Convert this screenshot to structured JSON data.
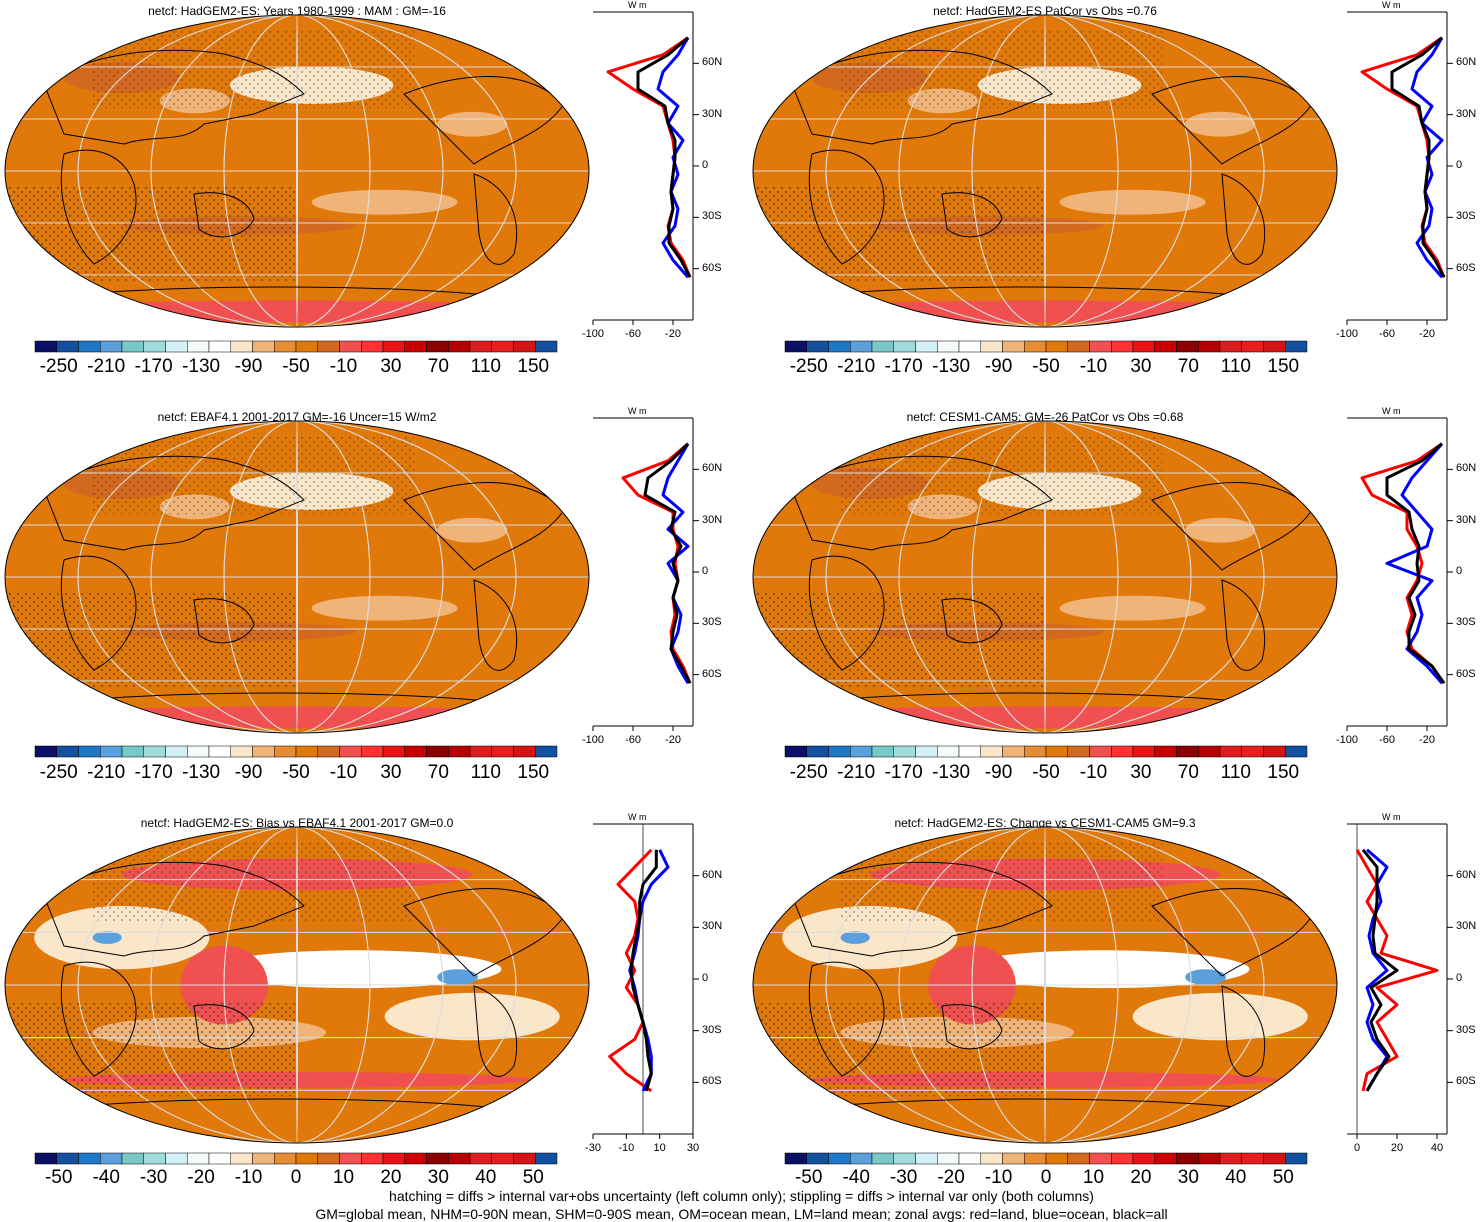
{
  "legend_colors": [
    "#0a1066",
    "#1450a0",
    "#1e78c8",
    "#5aa0dc",
    "#78c8c8",
    "#a0dcdc",
    "#d2f0f5",
    "#f5fafa",
    "#ffffff",
    "#fae6c8",
    "#f0b478",
    "#e68c32",
    "#e0780a",
    "#d2691e",
    "#f05050",
    "#ff3232",
    "#e61414",
    "#c80000",
    "#8c0000",
    "#b40000",
    "#dc1e1e",
    "#e61e1e",
    "#d21414",
    "#1450a0"
  ],
  "map_colors": {
    "base": "#e0780a",
    "light": "#fae6c8",
    "pale": "#f0b478",
    "dark": "#d2691e",
    "red": "#f05050",
    "white": "#ffffff",
    "blue": "#5aa0dc"
  },
  "zonal_colors": {
    "land": "#ff0000",
    "ocean": "#0000ff",
    "all": "#000000"
  },
  "footer": {
    "line1": "hatching = diffs > internal var+obs uncertainty (left column only); stippling = diffs > internal var only (both columns)",
    "line2": "GM=global mean, NHM=0-90N mean, SHM=0-90S mean, OM=ocean mean, LM=land mean; zonal avgs: red=land, blue=ocean, black=all"
  },
  "chart_data": [
    {
      "type": "heatmap",
      "title": "netcf: HadGEM2-ES: Years 1980-1999 : MAM : GM=-16",
      "colorbar_labels": [
        "-250",
        "-210",
        "-170",
        "-130",
        "-90",
        "-50",
        "-10",
        "30",
        "70",
        "110",
        "150"
      ],
      "zonal_unit": "W m",
      "zonal_xticks": [
        "-100",
        "-60",
        "-20"
      ],
      "zonal_xrange": [
        -100,
        0
      ],
      "zonal_yticks": [
        "60N",
        "30N",
        "0",
        "30S",
        "60S"
      ],
      "zonal_series": [
        {
          "lat": [
            75,
            65,
            55,
            45,
            35,
            25,
            15,
            5,
            -5,
            -15,
            -25,
            -35,
            -45,
            -55,
            -65
          ],
          "values": [
            -5,
            -30,
            -85,
            -60,
            -30,
            -25,
            -20,
            -18,
            -20,
            -22,
            -20,
            -25,
            -22,
            -10,
            -3
          ]
        },
        {
          "lat": [
            75,
            65,
            55,
            45,
            35,
            25,
            15,
            5,
            -5,
            -15,
            -25,
            -35,
            -45,
            -55,
            -65
          ],
          "values": [
            -5,
            -15,
            -30,
            -35,
            -15,
            -25,
            -10,
            -20,
            -15,
            -22,
            -15,
            -18,
            -30,
            -20,
            -5
          ]
        },
        {
          "lat": [
            75,
            65,
            55,
            45,
            35,
            25,
            15,
            5,
            -5,
            -15,
            -25,
            -35,
            -45,
            -55,
            -65
          ],
          "values": [
            -5,
            -25,
            -55,
            -55,
            -28,
            -25,
            -18,
            -18,
            -20,
            -22,
            -20,
            -24,
            -24,
            -12,
            -3
          ]
        }
      ]
    },
    {
      "type": "heatmap",
      "title": "netcf: HadGEM2-ES PatCor vs Obs =0.76",
      "colorbar_labels": [
        "-250",
        "-210",
        "-170",
        "-130",
        "-90",
        "-50",
        "-10",
        "30",
        "70",
        "110",
        "150"
      ],
      "zonal_unit": "W m",
      "zonal_xticks": [
        "-100",
        "-60",
        "-20"
      ],
      "zonal_xrange": [
        -100,
        0
      ],
      "zonal_yticks": [
        "60N",
        "30N",
        "0",
        "30S",
        "60S"
      ],
      "zonal_series": [
        {
          "lat": [
            75,
            65,
            55,
            45,
            35,
            25,
            15,
            5,
            -5,
            -15,
            -25,
            -35,
            -45,
            -55,
            -65
          ],
          "values": [
            -5,
            -30,
            -85,
            -60,
            -30,
            -25,
            -20,
            -18,
            -20,
            -22,
            -20,
            -25,
            -22,
            -10,
            -3
          ]
        },
        {
          "lat": [
            75,
            65,
            55,
            45,
            35,
            25,
            15,
            5,
            -5,
            -15,
            -25,
            -35,
            -45,
            -55,
            -65
          ],
          "values": [
            -5,
            -15,
            -30,
            -35,
            -15,
            -25,
            -5,
            -20,
            -15,
            -22,
            -15,
            -18,
            -30,
            -20,
            -5
          ]
        },
        {
          "lat": [
            75,
            65,
            55,
            45,
            35,
            25,
            15,
            5,
            -5,
            -15,
            -25,
            -35,
            -45,
            -55,
            -65
          ],
          "values": [
            -5,
            -25,
            -55,
            -55,
            -28,
            -25,
            -18,
            -18,
            -20,
            -22,
            -20,
            -24,
            -24,
            -12,
            -3
          ]
        }
      ]
    },
    {
      "type": "heatmap",
      "title": "netcf: EBAF4.1 2001-2017 GM=-16 Uncer=15 W/m2",
      "colorbar_labels": [
        "-250",
        "-210",
        "-170",
        "-130",
        "-90",
        "-50",
        "-10",
        "30",
        "70",
        "110",
        "150"
      ],
      "zonal_unit": "W m",
      "zonal_xticks": [
        "-100",
        "-60",
        "-20"
      ],
      "zonal_xrange": [
        -100,
        0
      ],
      "zonal_yticks": [
        "60N",
        "30N",
        "0",
        "30S",
        "60S"
      ],
      "zonal_series": [
        {
          "lat": [
            75,
            65,
            55,
            45,
            35,
            25,
            15,
            5,
            -5,
            -15,
            -25,
            -35,
            -45,
            -55,
            -65
          ],
          "values": [
            -5,
            -25,
            -70,
            -55,
            -20,
            -20,
            -15,
            -18,
            -15,
            -20,
            -18,
            -22,
            -20,
            -10,
            -3
          ]
        },
        {
          "lat": [
            75,
            65,
            55,
            45,
            35,
            25,
            15,
            5,
            -5,
            -15,
            -25,
            -35,
            -45,
            -55,
            -65
          ],
          "values": [
            -5,
            -15,
            -25,
            -30,
            -10,
            -25,
            -5,
            -25,
            -15,
            -20,
            -12,
            -15,
            -22,
            -15,
            -5
          ]
        },
        {
          "lat": [
            75,
            65,
            55,
            45,
            35,
            25,
            15,
            5,
            -5,
            -15,
            -25,
            -35,
            -45,
            -55,
            -65
          ],
          "values": [
            -5,
            -22,
            -45,
            -48,
            -18,
            -22,
            -12,
            -20,
            -15,
            -20,
            -16,
            -20,
            -22,
            -12,
            -3
          ]
        }
      ]
    },
    {
      "type": "heatmap",
      "title": "netcf: CESM1-CAM5: GM=-26 PatCor vs Obs =0.68",
      "colorbar_labels": [
        "-250",
        "-210",
        "-170",
        "-130",
        "-90",
        "-50",
        "-10",
        "30",
        "70",
        "110",
        "150"
      ],
      "zonal_unit": "W m",
      "zonal_xticks": [
        "-100",
        "-60",
        "-20"
      ],
      "zonal_xrange": [
        -100,
        0
      ],
      "zonal_yticks": [
        "60N",
        "30N",
        "0",
        "30S",
        "60S"
      ],
      "zonal_series": [
        {
          "lat": [
            75,
            65,
            55,
            45,
            35,
            25,
            15,
            5,
            -5,
            -15,
            -25,
            -35,
            -45,
            -55,
            -65
          ],
          "values": [
            -5,
            -30,
            -85,
            -75,
            -40,
            -40,
            -30,
            -25,
            -30,
            -40,
            -35,
            -40,
            -35,
            -15,
            -3
          ]
        },
        {
          "lat": [
            75,
            65,
            55,
            45,
            35,
            25,
            15,
            5,
            -5,
            -15,
            -25,
            -35,
            -45,
            -55,
            -65
          ],
          "values": [
            -5,
            -20,
            -35,
            -45,
            -30,
            -15,
            -20,
            -60,
            -15,
            -30,
            -25,
            -30,
            -40,
            -20,
            -5
          ]
        },
        {
          "lat": [
            75,
            65,
            55,
            45,
            35,
            25,
            15,
            5,
            -5,
            -15,
            -25,
            -35,
            -45,
            -55,
            -65
          ],
          "values": [
            -5,
            -25,
            -60,
            -60,
            -38,
            -35,
            -28,
            -30,
            -28,
            -38,
            -32,
            -38,
            -38,
            -15,
            -3
          ]
        }
      ]
    },
    {
      "type": "heatmap",
      "title": "netcf: HadGEM2-ES: Bias vs EBAF4.1 2001-2017 GM=0.0",
      "colorbar_labels": [
        "-50",
        "-40",
        "-30",
        "-20",
        "-10",
        "0",
        "10",
        "20",
        "30",
        "40",
        "50"
      ],
      "zonal_unit": "W m",
      "zonal_xticks": [
        "-30",
        "-10",
        "10",
        "30"
      ],
      "zonal_xrange": [
        -30,
        30
      ],
      "zonal_yticks": [
        "60N",
        "30N",
        "0",
        "30S",
        "60S"
      ],
      "zonal_series": [
        {
          "lat": [
            75,
            65,
            55,
            45,
            35,
            25,
            15,
            5,
            -5,
            -15,
            -25,
            -35,
            -45,
            -55,
            -65
          ],
          "values": [
            5,
            -5,
            -15,
            -5,
            -3,
            -5,
            -10,
            -5,
            -10,
            -3,
            0,
            -5,
            -20,
            -10,
            5
          ]
        },
        {
          "lat": [
            75,
            65,
            55,
            45,
            35,
            25,
            15,
            5,
            -5,
            -15,
            -25,
            -35,
            -45,
            -55,
            -65
          ],
          "values": [
            10,
            15,
            5,
            0,
            -2,
            -3,
            -5,
            -8,
            -5,
            -3,
            0,
            3,
            5,
            5,
            0
          ]
        },
        {
          "lat": [
            75,
            65,
            55,
            45,
            35,
            25,
            15,
            5,
            -5,
            -15,
            -25,
            -35,
            -45,
            -55,
            -65
          ],
          "values": [
            8,
            8,
            0,
            -2,
            -2,
            -4,
            -6,
            -7,
            -6,
            -3,
            0,
            2,
            3,
            5,
            2
          ]
        }
      ]
    },
    {
      "type": "heatmap",
      "title": "netcf: HadGEM2-ES: Change vs CESM1-CAM5 GM=9.3",
      "colorbar_labels": [
        "-50",
        "-40",
        "-30",
        "-20",
        "-10",
        "0",
        "10",
        "20",
        "30",
        "40",
        "50"
      ],
      "zonal_unit": "W m",
      "zonal_xticks": [
        "0",
        "20",
        "40"
      ],
      "zonal_xrange": [
        -5,
        45
      ],
      "zonal_yticks": [
        "60N",
        "30N",
        "0",
        "30S",
        "60S"
      ],
      "zonal_series": [
        {
          "lat": [
            75,
            65,
            55,
            45,
            35,
            25,
            15,
            5,
            -5,
            -15,
            -25,
            -35,
            -45,
            -55,
            -65
          ],
          "values": [
            0,
            5,
            10,
            5,
            10,
            15,
            12,
            40,
            10,
            20,
            10,
            15,
            20,
            5,
            3
          ]
        },
        {
          "lat": [
            75,
            65,
            55,
            45,
            35,
            25,
            15,
            5,
            -5,
            -15,
            -25,
            -35,
            -45,
            -55,
            -65
          ],
          "values": [
            5,
            15,
            10,
            12,
            8,
            6,
            8,
            15,
            5,
            8,
            5,
            8,
            15,
            10,
            5
          ]
        },
        {
          "lat": [
            75,
            65,
            55,
            45,
            35,
            25,
            15,
            5,
            -5,
            -15,
            -25,
            -35,
            -45,
            -55,
            -65
          ],
          "values": [
            3,
            10,
            10,
            10,
            9,
            8,
            9,
            20,
            7,
            12,
            7,
            10,
            16,
            10,
            5
          ]
        }
      ]
    }
  ]
}
